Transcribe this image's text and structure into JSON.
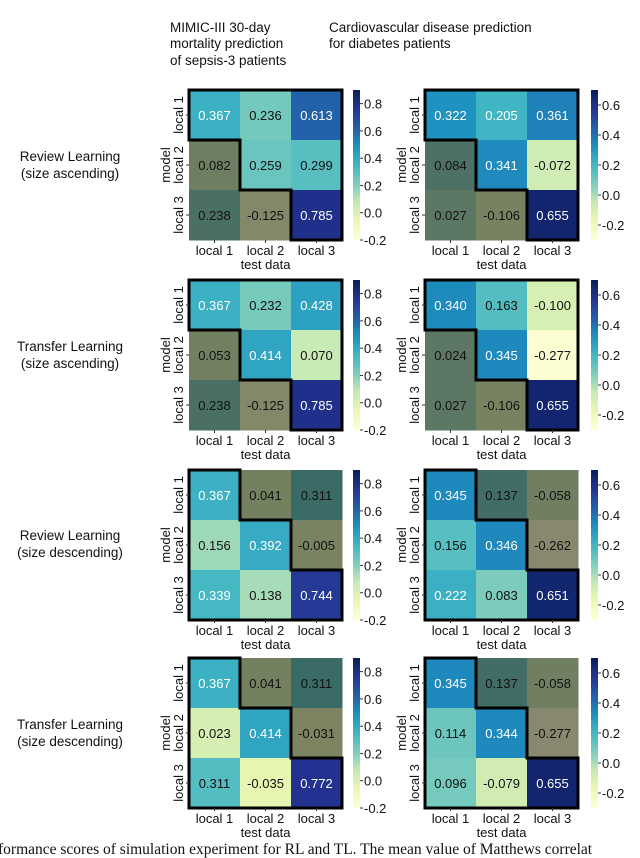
{
  "column_titles": [
    [
      "MIMIC-III 30-day",
      "mortality prediction",
      "of sepsis-3 patients"
    ],
    [
      "Cardiovascular disease prediction",
      "for diabetes patients"
    ]
  ],
  "row_labels": [
    [
      "Review Learning",
      "(size ascending)"
    ],
    [
      "Transfer Learning",
      "(size ascending)"
    ],
    [
      "Review Learning",
      "(size descending)"
    ],
    [
      "Transfer Learning",
      "(size descending)"
    ]
  ],
  "caption": "formance scores of simulation experiment for RL and TL. The mean value of Matthews correlat",
  "chart_data": [
    {
      "type": "heatmap",
      "row": 0,
      "col": 0,
      "xlabel": "test data",
      "ylabel": "model",
      "x_categories": [
        "local 1",
        "local 2",
        "local 3"
      ],
      "y_categories": [
        "local 1",
        "local 2",
        "local 3"
      ],
      "values": [
        [
          0.367,
          0.236,
          0.613
        ],
        [
          0.082,
          0.259,
          0.299
        ],
        [
          0.238,
          -0.125,
          0.785
        ]
      ],
      "highlighted": "upper-triangle",
      "colormap": "YlGnBu",
      "vlim": [
        -0.2,
        0.9
      ],
      "colorbar_ticks": [
        -0.2,
        0.0,
        0.2,
        0.4,
        0.6,
        0.8
      ]
    },
    {
      "type": "heatmap",
      "row": 0,
      "col": 1,
      "xlabel": "test data",
      "ylabel": "model",
      "x_categories": [
        "local 1",
        "local 2",
        "local 3"
      ],
      "y_categories": [
        "local 1",
        "local 2",
        "local 3"
      ],
      "values": [
        [
          0.322,
          0.205,
          0.361
        ],
        [
          0.084,
          0.341,
          -0.072
        ],
        [
          0.027,
          -0.106,
          0.655
        ]
      ],
      "highlighted": "upper-triangle",
      "colormap": "YlGnBu",
      "vlim": [
        -0.3,
        0.7
      ],
      "colorbar_ticks": [
        -0.2,
        0.0,
        0.2,
        0.4,
        0.6
      ]
    },
    {
      "type": "heatmap",
      "row": 1,
      "col": 0,
      "xlabel": "test data",
      "ylabel": "model",
      "x_categories": [
        "local 1",
        "local 2",
        "local 3"
      ],
      "y_categories": [
        "local 1",
        "local 2",
        "local 3"
      ],
      "values": [
        [
          0.367,
          0.232,
          0.428
        ],
        [
          0.053,
          0.414,
          0.07
        ],
        [
          0.238,
          -0.125,
          0.785
        ]
      ],
      "highlighted": "upper-triangle",
      "colormap": "YlGnBu",
      "vlim": [
        -0.2,
        0.9
      ],
      "colorbar_ticks": [
        -0.2,
        0.0,
        0.2,
        0.4,
        0.6,
        0.8
      ]
    },
    {
      "type": "heatmap",
      "row": 1,
      "col": 1,
      "xlabel": "test data",
      "ylabel": "model",
      "x_categories": [
        "local 1",
        "local 2",
        "local 3"
      ],
      "y_categories": [
        "local 1",
        "local 2",
        "local 3"
      ],
      "values": [
        [
          0.34,
          0.163,
          -0.1
        ],
        [
          0.024,
          0.345,
          -0.277
        ],
        [
          0.027,
          -0.106,
          0.655
        ]
      ],
      "highlighted": "upper-triangle",
      "colormap": "YlGnBu",
      "vlim": [
        -0.3,
        0.7
      ],
      "colorbar_ticks": [
        -0.2,
        0.0,
        0.2,
        0.4,
        0.6
      ]
    },
    {
      "type": "heatmap",
      "row": 2,
      "col": 0,
      "xlabel": "test data",
      "ylabel": "model",
      "x_categories": [
        "local 1",
        "local 2",
        "local 3"
      ],
      "y_categories": [
        "local 1",
        "local 2",
        "local 3"
      ],
      "values": [
        [
          0.367,
          0.041,
          0.311
        ],
        [
          0.156,
          0.392,
          -0.005
        ],
        [
          0.339,
          0.138,
          0.744
        ]
      ],
      "highlighted": "lower-triangle",
      "colormap": "YlGnBu",
      "vlim": [
        -0.2,
        0.9
      ],
      "colorbar_ticks": [
        -0.2,
        0.0,
        0.2,
        0.4,
        0.6,
        0.8
      ]
    },
    {
      "type": "heatmap",
      "row": 2,
      "col": 1,
      "xlabel": "test data",
      "ylabel": "model",
      "x_categories": [
        "local 1",
        "local 2",
        "local 3"
      ],
      "y_categories": [
        "local 1",
        "local 2",
        "local 3"
      ],
      "values": [
        [
          0.345,
          0.137,
          -0.058
        ],
        [
          0.156,
          0.346,
          -0.262
        ],
        [
          0.222,
          0.083,
          0.651
        ]
      ],
      "highlighted": "lower-triangle",
      "colormap": "YlGnBu",
      "vlim": [
        -0.3,
        0.7
      ],
      "colorbar_ticks": [
        -0.2,
        0.0,
        0.2,
        0.4,
        0.6
      ]
    },
    {
      "type": "heatmap",
      "row": 3,
      "col": 0,
      "xlabel": "test data",
      "ylabel": "model",
      "x_categories": [
        "local 1",
        "local 2",
        "local 3"
      ],
      "y_categories": [
        "local 1",
        "local 2",
        "local 3"
      ],
      "values": [
        [
          0.367,
          0.041,
          0.311
        ],
        [
          0.023,
          0.414,
          -0.031
        ],
        [
          0.311,
          -0.035,
          0.772
        ]
      ],
      "highlighted": "lower-triangle",
      "colormap": "YlGnBu",
      "vlim": [
        -0.2,
        0.9
      ],
      "colorbar_ticks": [
        -0.2,
        0.0,
        0.2,
        0.4,
        0.6,
        0.8
      ]
    },
    {
      "type": "heatmap",
      "row": 3,
      "col": 1,
      "xlabel": "test data",
      "ylabel": "model",
      "x_categories": [
        "local 1",
        "local 2",
        "local 3"
      ],
      "y_categories": [
        "local 1",
        "local 2",
        "local 3"
      ],
      "values": [
        [
          0.345,
          0.137,
          -0.058
        ],
        [
          0.114,
          0.344,
          -0.277
        ],
        [
          0.096,
          -0.079,
          0.655
        ]
      ],
      "highlighted": "lower-triangle",
      "colormap": "YlGnBu",
      "vlim": [
        -0.3,
        0.7
      ],
      "colorbar_ticks": [
        -0.2,
        0.0,
        0.2,
        0.4,
        0.6
      ]
    }
  ]
}
